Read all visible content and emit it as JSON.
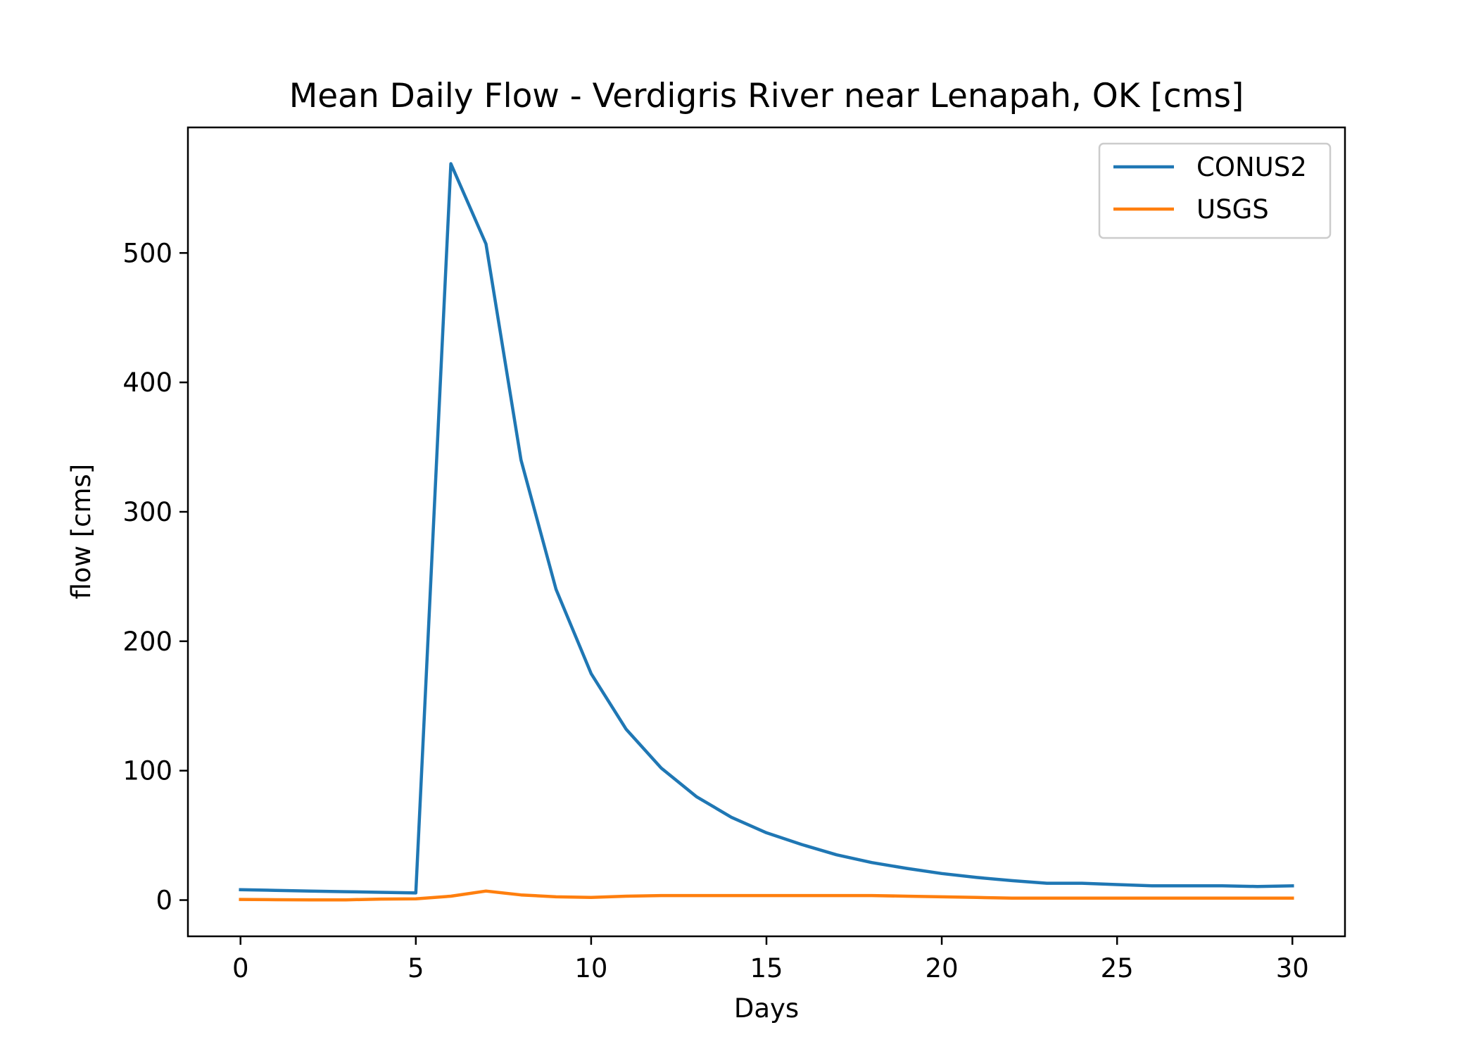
{
  "chart_data": {
    "type": "line",
    "title": "Mean Daily Flow - Verdigris River near Lenapah, OK [cms]",
    "xlabel": "Days",
    "ylabel": "flow [cms]",
    "xlim": [
      -1.5,
      31.5
    ],
    "ylim": [
      -28,
      597
    ],
    "xticks": [
      0,
      5,
      10,
      15,
      20,
      25,
      30
    ],
    "yticks": [
      0,
      100,
      200,
      300,
      400,
      500
    ],
    "grid": false,
    "legend_position": "upper right",
    "x": [
      0,
      1,
      2,
      3,
      4,
      5,
      6,
      7,
      8,
      9,
      10,
      11,
      12,
      13,
      14,
      15,
      16,
      17,
      18,
      19,
      20,
      21,
      22,
      23,
      24,
      25,
      26,
      27,
      28,
      29,
      30
    ],
    "series": [
      {
        "name": "CONUS2",
        "color": "#1f77b4",
        "values": [
          8,
          7.5,
          7,
          6.5,
          6,
          5.5,
          569,
          507,
          340,
          240,
          175,
          132,
          102,
          80,
          64,
          52,
          43,
          35,
          29,
          24.5,
          20.5,
          17.5,
          15,
          13,
          13,
          12,
          11,
          11,
          11,
          10.5,
          11
        ]
      },
      {
        "name": "USGS",
        "color": "#ff7f0e",
        "values": [
          0.5,
          0.3,
          0.2,
          0.2,
          0.8,
          1,
          3,
          7,
          4,
          2.5,
          2,
          3,
          3.5,
          3.5,
          3.5,
          3.5,
          3.5,
          3.5,
          3.5,
          3,
          2.5,
          2,
          1.5,
          1.5,
          1.5,
          1.5,
          1.5,
          1.5,
          1.5,
          1.5,
          1.5
        ]
      }
    ]
  }
}
